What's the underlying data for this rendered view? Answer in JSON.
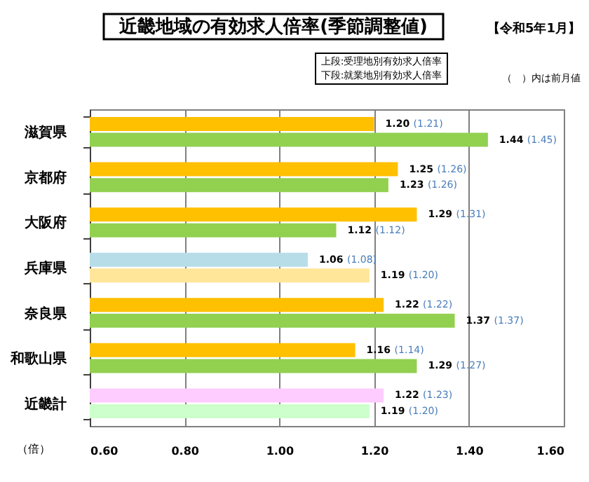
{
  "chart_data": {
    "type": "bar",
    "orientation": "horizontal",
    "title": "近畿地域の有効求人倍率(季節調整値)",
    "categories": [
      "滋賀県",
      "京都府",
      "大阪府",
      "兵庫県",
      "奈良県",
      "和歌山県",
      "近畿計"
    ],
    "series": [
      {
        "colors": [
          "#ffc000",
          "#ffc000",
          "#ffc000",
          "#b7dde8",
          "#ffc000",
          "#ffc000",
          "#ffccff"
        ],
        "values": [
          1.2,
          1.25,
          1.29,
          1.06,
          1.22,
          1.16,
          1.22
        ],
        "value_labels": [
          "1.20 (1.21)",
          "1.25 (1.26)",
          "1.29 (1.31)",
          "1.06 (1.08)",
          "1.22 (1.22)",
          "1.16 (1.14)",
          "1.22 (1.23)"
        ]
      },
      {
        "colors": [
          "#92d050",
          "#92d050",
          "#92d050",
          "#ffe699",
          "#92d050",
          "#92d050",
          "#ccffcc"
        ],
        "values": [
          1.44,
          1.23,
          1.12,
          1.19,
          1.37,
          1.29,
          1.19
        ],
        "value_labels": [
          "1.44 (1.45)",
          "1.23 (1.26)",
          "1.12 (1.12)",
          "1.19 (1.20)",
          "1.37 (1.37)",
          "1.29 (1.27)",
          "1.19 (1.20)"
        ]
      }
    ],
    "xlim": [
      0.6,
      1.6
    ],
    "xticks": [
      {
        "value": 0.6,
        "label": "0.60"
      },
      {
        "value": 0.8,
        "label": "0.80"
      },
      {
        "value": 1.0,
        "label": "1.00"
      },
      {
        "value": 1.2,
        "label": "1.20"
      },
      {
        "value": 1.4,
        "label": "1.40"
      },
      {
        "value": 1.6,
        "label": "1.60"
      }
    ],
    "xlabel": "（倍）",
    "grid": "x",
    "annotations": [
      "【令和5年1月】",
      "上段:受理地別有効求人倍率",
      "下段:就業地別有効求人倍率",
      "（　）内は前月値"
    ]
  }
}
